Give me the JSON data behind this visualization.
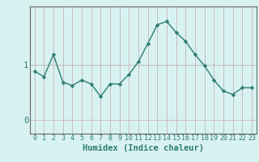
{
  "xlabel": "Humidex (Indice chaleur)",
  "x": [
    0,
    1,
    2,
    3,
    4,
    5,
    6,
    7,
    8,
    9,
    10,
    11,
    12,
    13,
    14,
    15,
    16,
    17,
    18,
    19,
    20,
    21,
    22,
    23
  ],
  "y": [
    0.88,
    0.78,
    1.18,
    0.68,
    0.62,
    0.72,
    0.65,
    0.42,
    0.65,
    0.65,
    0.82,
    1.05,
    1.38,
    1.72,
    1.78,
    1.58,
    1.42,
    1.18,
    0.98,
    0.72,
    0.52,
    0.46,
    0.58,
    0.58
  ],
  "line_color": "#2d7d6e",
  "marker": "D",
  "marker_size": 2.2,
  "bg_color": "#d8f2f2",
  "grid_color": "#c0a8a8",
  "yticks": [
    0,
    1
  ],
  "ylim": [
    -0.25,
    2.05
  ],
  "xlim": [
    -0.5,
    23.5
  ],
  "tick_color": "#2d7d6e",
  "axis_color": "#666666",
  "xlabel_fontsize": 7.5,
  "tick_fontsize": 6.0,
  "ytick_fontsize": 7.5,
  "linewidth": 1.0
}
